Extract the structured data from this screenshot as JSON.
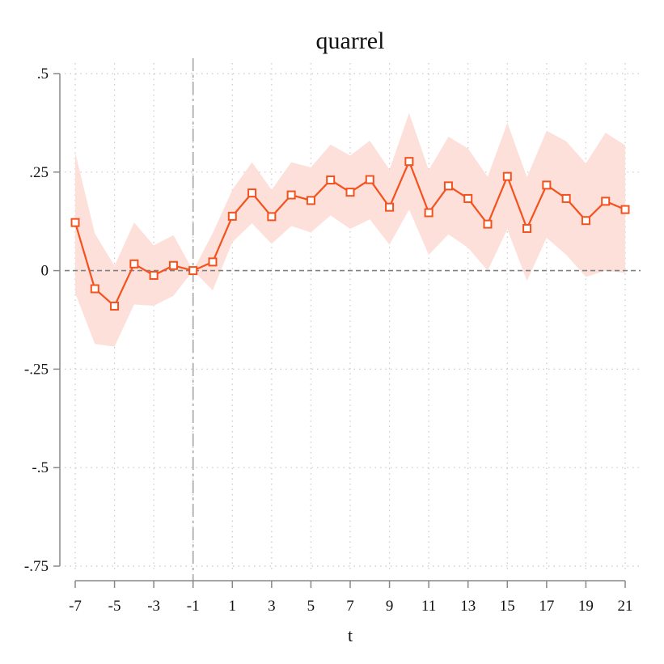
{
  "chart_data": {
    "type": "line",
    "title": "quarrel",
    "xlabel": "t",
    "ylabel": "",
    "xlim": [
      -7,
      21
    ],
    "ylim": [
      -0.75,
      0.5
    ],
    "x_ticks": [
      -7,
      -5,
      -3,
      -1,
      1,
      3,
      5,
      7,
      9,
      11,
      13,
      15,
      17,
      19,
      21
    ],
    "x_tick_labels": [
      "-7",
      "-5",
      "-3",
      "-1",
      "1",
      "3",
      "5",
      "7",
      "9",
      "11",
      "13",
      "15",
      "17",
      "19",
      "21"
    ],
    "y_ticks": [
      0.5,
      0.25,
      0,
      -0.25,
      -0.5,
      -0.75
    ],
    "y_tick_labels": [
      ".5",
      ".25",
      "0",
      "-.25",
      "-.5",
      "-.75"
    ],
    "grid": true,
    "reference_lines": {
      "x": -1,
      "y": 0
    },
    "series": [
      {
        "x": [
          -7,
          -6,
          -5,
          -4,
          -3,
          -2,
          -1,
          0,
          1,
          2,
          3,
          4,
          5,
          6,
          7,
          8,
          9,
          10,
          11,
          12,
          13,
          14,
          15,
          16,
          17,
          18,
          19,
          20,
          21
        ],
        "values": [
          0.122,
          -0.046,
          -0.09,
          0.017,
          -0.012,
          0.013,
          0.0,
          0.022,
          0.138,
          0.197,
          0.137,
          0.192,
          0.178,
          0.23,
          0.199,
          0.231,
          0.161,
          0.277,
          0.147,
          0.215,
          0.183,
          0.118,
          0.239,
          0.107,
          0.217,
          0.183,
          0.127,
          0.176,
          0.155
        ],
        "ci_upper": [
          0.3,
          0.094,
          0.012,
          0.122,
          0.064,
          0.09,
          0.0,
          0.095,
          0.205,
          0.275,
          0.205,
          0.275,
          0.262,
          0.32,
          0.292,
          0.33,
          0.256,
          0.4,
          0.255,
          0.34,
          0.31,
          0.238,
          0.375,
          0.237,
          0.355,
          0.328,
          0.272,
          0.35,
          0.318
        ],
        "ci_lower": [
          -0.057,
          -0.186,
          -0.193,
          -0.086,
          -0.089,
          -0.064,
          0.0,
          -0.05,
          0.072,
          0.12,
          0.068,
          0.113,
          0.097,
          0.14,
          0.106,
          0.13,
          0.066,
          0.155,
          0.04,
          0.092,
          0.058,
          0.0,
          0.105,
          -0.026,
          0.083,
          0.04,
          -0.016,
          0.0,
          -0.006
        ]
      }
    ],
    "colors": {
      "line": "#f4511e",
      "ci_band": "#fde0da",
      "grid": "#c8c8c8",
      "axis": "#888888",
      "reference": "#808080",
      "vline": "#b0b0b0"
    }
  }
}
